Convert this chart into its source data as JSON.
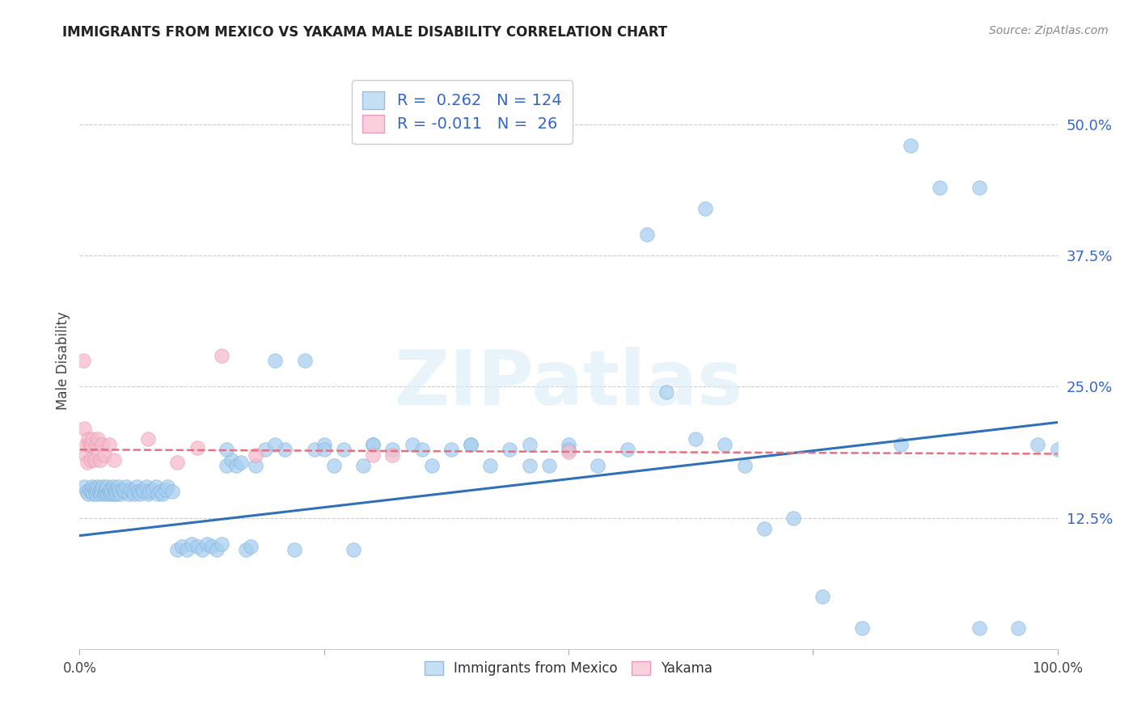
{
  "title": "IMMIGRANTS FROM MEXICO VS YAKAMA MALE DISABILITY CORRELATION CHART",
  "source": "Source: ZipAtlas.com",
  "ylabel": "Male Disability",
  "ytick_values": [
    0.125,
    0.25,
    0.375,
    0.5
  ],
  "ytick_labels": [
    "12.5%",
    "25.0%",
    "37.5%",
    "50.0%"
  ],
  "xlim": [
    0.0,
    1.0
  ],
  "ylim": [
    0.0,
    0.55
  ],
  "blue_R": 0.262,
  "blue_N": 124,
  "pink_R": -0.011,
  "pink_N": 26,
  "blue_color": "#A8CFF0",
  "pink_color": "#F5BBCC",
  "blue_edge_color": "#7BADD6",
  "pink_edge_color": "#E890AA",
  "blue_line_color": "#3070B8",
  "pink_line_color": "#E87080",
  "legend_blue_fill": "#C5DFF5",
  "legend_pink_fill": "#FAD0DC",
  "text_color_blue": "#3366CC",
  "grid_color": "#cccccc",
  "background_color": "#ffffff",
  "watermark": "ZIPatlas",
  "blue_line_y_start": 0.108,
  "blue_line_y_end": 0.216,
  "pink_line_y_start": 0.19,
  "pink_line_y_end": 0.186,
  "blue_scatter_x": [
    0.005,
    0.007,
    0.009,
    0.01,
    0.012,
    0.013,
    0.014,
    0.015,
    0.016,
    0.017,
    0.018,
    0.019,
    0.02,
    0.021,
    0.022,
    0.023,
    0.024,
    0.025,
    0.026,
    0.027,
    0.028,
    0.029,
    0.03,
    0.031,
    0.032,
    0.033,
    0.034,
    0.035,
    0.036,
    0.037,
    0.038,
    0.039,
    0.04,
    0.042,
    0.044,
    0.046,
    0.048,
    0.05,
    0.052,
    0.054,
    0.056,
    0.058,
    0.06,
    0.062,
    0.064,
    0.066,
    0.068,
    0.07,
    0.072,
    0.075,
    0.078,
    0.08,
    0.082,
    0.085,
    0.088,
    0.09,
    0.095,
    0.1,
    0.105,
    0.11,
    0.115,
    0.12,
    0.125,
    0.13,
    0.135,
    0.14,
    0.145,
    0.15,
    0.155,
    0.16,
    0.165,
    0.17,
    0.175,
    0.18,
    0.19,
    0.2,
    0.21,
    0.22,
    0.23,
    0.24,
    0.25,
    0.26,
    0.27,
    0.28,
    0.29,
    0.3,
    0.32,
    0.34,
    0.36,
    0.38,
    0.4,
    0.42,
    0.44,
    0.46,
    0.48,
    0.5,
    0.53,
    0.56,
    0.6,
    0.63,
    0.66,
    0.68,
    0.7,
    0.73,
    0.76,
    0.8,
    0.84,
    0.88,
    0.92,
    0.96,
    0.98,
    1.0,
    0.92,
    0.85,
    0.64,
    0.58,
    0.5,
    0.46,
    0.4,
    0.35,
    0.3,
    0.25,
    0.2,
    0.15
  ],
  "blue_scatter_y": [
    0.155,
    0.15,
    0.148,
    0.152,
    0.15,
    0.155,
    0.148,
    0.153,
    0.15,
    0.148,
    0.152,
    0.155,
    0.15,
    0.148,
    0.152,
    0.15,
    0.155,
    0.148,
    0.15,
    0.152,
    0.155,
    0.148,
    0.15,
    0.152,
    0.148,
    0.15,
    0.155,
    0.148,
    0.152,
    0.15,
    0.148,
    0.155,
    0.15,
    0.148,
    0.152,
    0.15,
    0.155,
    0.148,
    0.152,
    0.15,
    0.148,
    0.155,
    0.15,
    0.148,
    0.152,
    0.15,
    0.155,
    0.148,
    0.15,
    0.152,
    0.155,
    0.148,
    0.15,
    0.148,
    0.152,
    0.155,
    0.15,
    0.095,
    0.098,
    0.095,
    0.1,
    0.098,
    0.095,
    0.1,
    0.098,
    0.095,
    0.1,
    0.175,
    0.18,
    0.175,
    0.178,
    0.095,
    0.098,
    0.175,
    0.19,
    0.275,
    0.19,
    0.095,
    0.275,
    0.19,
    0.195,
    0.175,
    0.19,
    0.095,
    0.175,
    0.195,
    0.19,
    0.195,
    0.175,
    0.19,
    0.195,
    0.175,
    0.19,
    0.195,
    0.175,
    0.195,
    0.175,
    0.19,
    0.245,
    0.2,
    0.195,
    0.175,
    0.115,
    0.125,
    0.05,
    0.02,
    0.195,
    0.44,
    0.02,
    0.02,
    0.195,
    0.19,
    0.44,
    0.48,
    0.42,
    0.395,
    0.19,
    0.175,
    0.195,
    0.19,
    0.195,
    0.19,
    0.195,
    0.19
  ],
  "pink_scatter_x": [
    0.004,
    0.005,
    0.006,
    0.007,
    0.008,
    0.009,
    0.01,
    0.011,
    0.012,
    0.013,
    0.015,
    0.017,
    0.019,
    0.021,
    0.023,
    0.025,
    0.03,
    0.035,
    0.07,
    0.1,
    0.12,
    0.145,
    0.18,
    0.3,
    0.32,
    0.5
  ],
  "pink_scatter_y": [
    0.275,
    0.21,
    0.185,
    0.195,
    0.178,
    0.2,
    0.195,
    0.18,
    0.195,
    0.2,
    0.18,
    0.195,
    0.2,
    0.18,
    0.195,
    0.185,
    0.195,
    0.18,
    0.2,
    0.178,
    0.192,
    0.28,
    0.185,
    0.185,
    0.185,
    0.188
  ]
}
